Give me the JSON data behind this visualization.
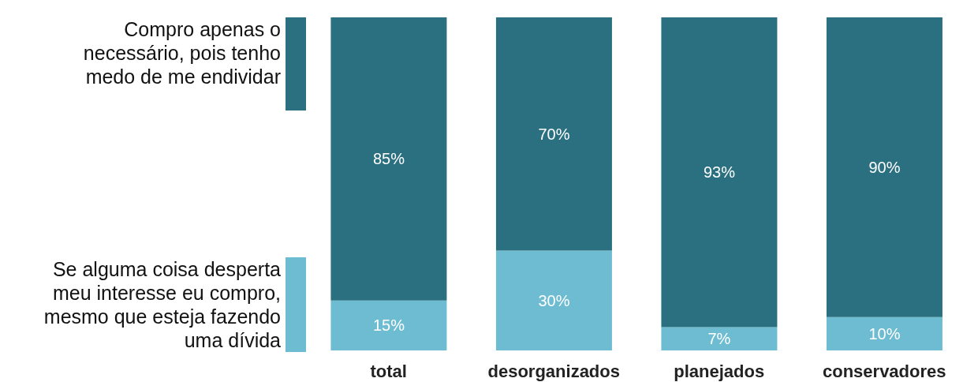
{
  "chart_data": {
    "type": "bar",
    "stacked": true,
    "legend": "left",
    "categories": [
      "total",
      "desorganizados",
      "planejados",
      "conservadores"
    ],
    "series": [
      {
        "name": "Se alguma coisa desperta meu interesse eu compro, mesmo que esteja fazendo uma dívida",
        "color": "#6dbcd1",
        "values": [
          15,
          30,
          7,
          10
        ],
        "value_labels": [
          "15%",
          "30%",
          "7%",
          "10%"
        ]
      },
      {
        "name": "Compro apenas o necessário, pois tenho medo de me endividar",
        "color": "#2a7080",
        "values": [
          85,
          70,
          93,
          90
        ],
        "value_labels": [
          "85%",
          "70%",
          "93%",
          "90%"
        ]
      }
    ]
  }
}
